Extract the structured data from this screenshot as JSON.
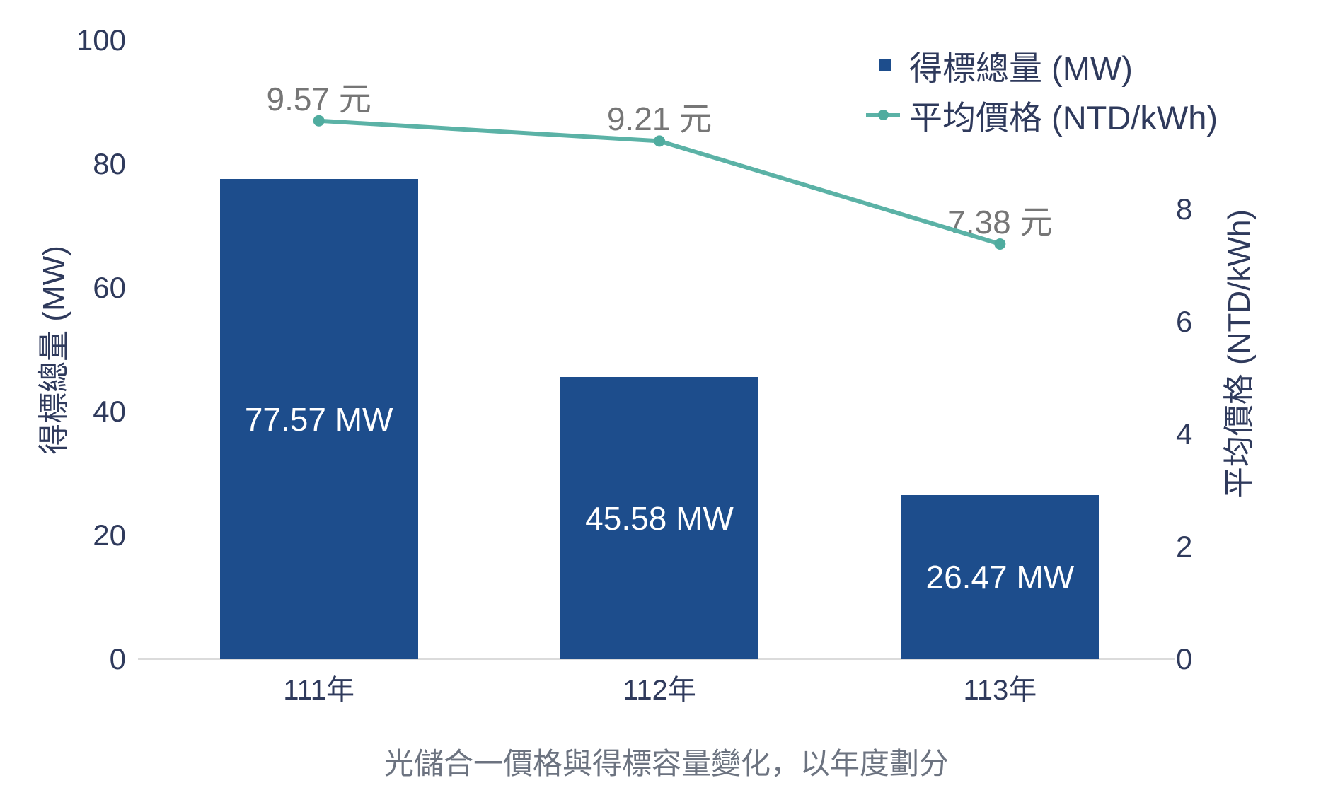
{
  "chart_data": {
    "type": "combo-bar-line",
    "categories": [
      "111年",
      "112年",
      "113年"
    ],
    "series": [
      {
        "name": "得標總量 (MW)",
        "type": "bar",
        "axis": "left",
        "values": [
          77.57,
          45.58,
          26.47
        ],
        "data_labels": [
          "77.57 MW",
          "45.58 MW",
          "26.47 MW"
        ],
        "color": "#1D4D8C"
      },
      {
        "name": "平均價格 (NTD/kWh)",
        "type": "line",
        "axis": "right",
        "values": [
          9.57,
          9.21,
          7.38
        ],
        "data_labels": [
          "9.57 元",
          "9.21 元",
          "7.38 元"
        ],
        "color": "#5BB2A6",
        "marker_color": "#4FAC9F"
      }
    ],
    "left_axis": {
      "title": "得標總量 (MW)",
      "ticks": [
        0,
        20,
        40,
        60,
        80,
        100
      ],
      "range": [
        0,
        100
      ]
    },
    "right_axis": {
      "title": "平均價格 (NTD/kWh)",
      "ticks": [
        0,
        2,
        4,
        6,
        8
      ],
      "range": [
        0,
        11
      ]
    },
    "title": "光儲合一價格與得標容量變化，以年度劃分",
    "legend_position": "top-right",
    "grid": false,
    "colors": {
      "bar": "#1D4D8C",
      "line": "#5BB2A6",
      "line_marker": "#4FAC9F",
      "axis_text": "#2F3A5C",
      "bar_label_text": "#ffffff",
      "data_label_text": "#767676",
      "title_text": "#6C7380",
      "baseline": "#DBDBDB"
    }
  }
}
